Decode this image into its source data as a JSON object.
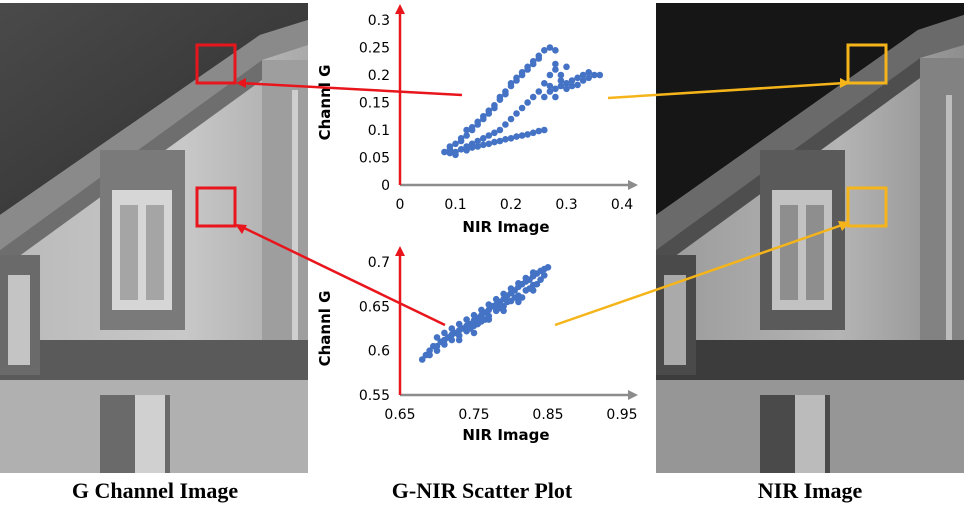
{
  "captions": {
    "left": "G Channel Image",
    "middle": "G-NIR Scatter Plot",
    "right": "NIR Image"
  },
  "colors": {
    "region_box_g": "#e8161c",
    "region_box_nir": "#f5b51a",
    "scatter_points": "#4472c4",
    "axis_x": "#8c8c8c",
    "axis_y": "#e8161c"
  },
  "chart_data": [
    {
      "type": "scatter",
      "xlabel": "NIR Image",
      "ylabel": "Channl G",
      "xlim": [
        0,
        0.4
      ],
      "ylim": [
        0,
        0.3
      ],
      "x_ticks": [
        "0",
        "0.1",
        "0.2",
        "0.3",
        "0.4"
      ],
      "y_ticks": [
        "0",
        "0.05",
        "0.1",
        "0.15",
        "0.2",
        "0.25",
        "0.3"
      ],
      "grid": false,
      "points": [
        [
          0.08,
          0.06
        ],
        [
          0.09,
          0.07
        ],
        [
          0.1,
          0.075
        ],
        [
          0.11,
          0.08
        ],
        [
          0.12,
          0.09
        ],
        [
          0.13,
          0.1
        ],
        [
          0.14,
          0.11
        ],
        [
          0.15,
          0.12
        ],
        [
          0.16,
          0.13
        ],
        [
          0.17,
          0.14
        ],
        [
          0.18,
          0.155
        ],
        [
          0.19,
          0.165
        ],
        [
          0.2,
          0.18
        ],
        [
          0.21,
          0.19
        ],
        [
          0.22,
          0.2
        ],
        [
          0.23,
          0.21
        ],
        [
          0.24,
          0.22
        ],
        [
          0.25,
          0.235
        ],
        [
          0.26,
          0.245
        ],
        [
          0.27,
          0.25
        ],
        [
          0.28,
          0.245
        ],
        [
          0.09,
          0.065
        ],
        [
          0.11,
          0.085
        ],
        [
          0.13,
          0.105
        ],
        [
          0.15,
          0.125
        ],
        [
          0.17,
          0.145
        ],
        [
          0.19,
          0.17
        ],
        [
          0.21,
          0.195
        ],
        [
          0.23,
          0.215
        ],
        [
          0.25,
          0.23
        ],
        [
          0.12,
          0.1
        ],
        [
          0.14,
          0.115
        ],
        [
          0.16,
          0.135
        ],
        [
          0.18,
          0.16
        ],
        [
          0.2,
          0.185
        ],
        [
          0.22,
          0.205
        ],
        [
          0.24,
          0.225
        ],
        [
          0.28,
          0.22
        ],
        [
          0.27,
          0.2
        ],
        [
          0.26,
          0.185
        ],
        [
          0.25,
          0.17
        ],
        [
          0.24,
          0.16
        ],
        [
          0.23,
          0.15
        ],
        [
          0.22,
          0.14
        ],
        [
          0.21,
          0.13
        ],
        [
          0.2,
          0.12
        ],
        [
          0.19,
          0.11
        ],
        [
          0.18,
          0.1
        ],
        [
          0.17,
          0.095
        ],
        [
          0.16,
          0.09
        ],
        [
          0.15,
          0.085
        ],
        [
          0.14,
          0.08
        ],
        [
          0.13,
          0.075
        ],
        [
          0.12,
          0.07
        ],
        [
          0.11,
          0.065
        ],
        [
          0.1,
          0.06
        ],
        [
          0.09,
          0.058
        ],
        [
          0.14,
          0.07
        ],
        [
          0.16,
          0.075
        ],
        [
          0.18,
          0.08
        ],
        [
          0.2,
          0.085
        ],
        [
          0.22,
          0.09
        ],
        [
          0.24,
          0.095
        ],
        [
          0.26,
          0.1
        ],
        [
          0.25,
          0.098
        ],
        [
          0.23,
          0.092
        ],
        [
          0.21,
          0.088
        ],
        [
          0.19,
          0.083
        ],
        [
          0.17,
          0.078
        ],
        [
          0.15,
          0.073
        ],
        [
          0.13,
          0.068
        ],
        [
          0.12,
          0.063
        ],
        [
          0.1,
          0.055
        ],
        [
          0.27,
          0.17
        ],
        [
          0.28,
          0.175
        ],
        [
          0.29,
          0.18
        ],
        [
          0.3,
          0.185
        ],
        [
          0.31,
          0.19
        ],
        [
          0.32,
          0.195
        ],
        [
          0.33,
          0.2
        ],
        [
          0.34,
          0.205
        ],
        [
          0.35,
          0.2
        ],
        [
          0.36,
          0.2
        ],
        [
          0.3,
          0.175
        ],
        [
          0.31,
          0.18
        ],
        [
          0.32,
          0.182
        ],
        [
          0.33,
          0.19
        ],
        [
          0.34,
          0.195
        ],
        [
          0.29,
          0.2
        ],
        [
          0.28,
          0.21
        ],
        [
          0.3,
          0.215
        ],
        [
          0.29,
          0.19
        ],
        [
          0.27,
          0.18
        ],
        [
          0.26,
          0.16
        ],
        [
          0.28,
          0.16
        ]
      ]
    },
    {
      "type": "scatter",
      "xlabel": "NIR Image",
      "ylabel": "Channl G",
      "xlim": [
        0.65,
        0.95
      ],
      "ylim": [
        0.55,
        0.7
      ],
      "x_ticks": [
        "0.65",
        "0.75",
        "0.85",
        "0.95"
      ],
      "y_ticks": [
        "0.55",
        "0.6",
        "0.65",
        "0.7"
      ],
      "grid": false,
      "points": [
        [
          0.68,
          0.59
        ],
        [
          0.685,
          0.595
        ],
        [
          0.69,
          0.6
        ],
        [
          0.695,
          0.605
        ],
        [
          0.7,
          0.605
        ],
        [
          0.705,
          0.61
        ],
        [
          0.71,
          0.612
        ],
        [
          0.715,
          0.615
        ],
        [
          0.72,
          0.618
        ],
        [
          0.725,
          0.62
        ],
        [
          0.73,
          0.623
        ],
        [
          0.735,
          0.625
        ],
        [
          0.74,
          0.628
        ],
        [
          0.745,
          0.63
        ],
        [
          0.75,
          0.634
        ],
        [
          0.755,
          0.637
        ],
        [
          0.76,
          0.64
        ],
        [
          0.765,
          0.643
        ],
        [
          0.77,
          0.646
        ],
        [
          0.775,
          0.65
        ],
        [
          0.78,
          0.652
        ],
        [
          0.785,
          0.655
        ],
        [
          0.79,
          0.658
        ],
        [
          0.795,
          0.662
        ],
        [
          0.8,
          0.665
        ],
        [
          0.805,
          0.668
        ],
        [
          0.81,
          0.672
        ],
        [
          0.815,
          0.675
        ],
        [
          0.82,
          0.678
        ],
        [
          0.825,
          0.68
        ],
        [
          0.83,
          0.684
        ],
        [
          0.835,
          0.687
        ],
        [
          0.84,
          0.69
        ],
        [
          0.845,
          0.692
        ],
        [
          0.85,
          0.694
        ],
        [
          0.69,
          0.595
        ],
        [
          0.7,
          0.6
        ],
        [
          0.71,
          0.607
        ],
        [
          0.72,
          0.612
        ],
        [
          0.73,
          0.617
        ],
        [
          0.74,
          0.622
        ],
        [
          0.75,
          0.628
        ],
        [
          0.76,
          0.633
        ],
        [
          0.77,
          0.639
        ],
        [
          0.78,
          0.645
        ],
        [
          0.79,
          0.65
        ],
        [
          0.8,
          0.656
        ],
        [
          0.81,
          0.662
        ],
        [
          0.82,
          0.668
        ],
        [
          0.83,
          0.674
        ],
        [
          0.84,
          0.68
        ],
        [
          0.72,
          0.625
        ],
        [
          0.73,
          0.63
        ],
        [
          0.74,
          0.635
        ],
        [
          0.75,
          0.64
        ],
        [
          0.76,
          0.646
        ],
        [
          0.77,
          0.652
        ],
        [
          0.78,
          0.658
        ],
        [
          0.79,
          0.664
        ],
        [
          0.8,
          0.67
        ],
        [
          0.81,
          0.676
        ],
        [
          0.82,
          0.682
        ],
        [
          0.83,
          0.688
        ],
        [
          0.71,
          0.62
        ],
        [
          0.7,
          0.615
        ],
        [
          0.73,
          0.612
        ],
        [
          0.75,
          0.62
        ],
        [
          0.77,
          0.635
        ],
        [
          0.79,
          0.645
        ],
        [
          0.81,
          0.655
        ],
        [
          0.83,
          0.668
        ],
        [
          0.845,
          0.685
        ],
        [
          0.835,
          0.675
        ],
        [
          0.825,
          0.67
        ],
        [
          0.815,
          0.66
        ],
        [
          0.805,
          0.66
        ],
        [
          0.795,
          0.655
        ],
        [
          0.785,
          0.648
        ],
        [
          0.765,
          0.635
        ],
        [
          0.755,
          0.63
        ],
        [
          0.745,
          0.625
        ]
      ]
    }
  ]
}
